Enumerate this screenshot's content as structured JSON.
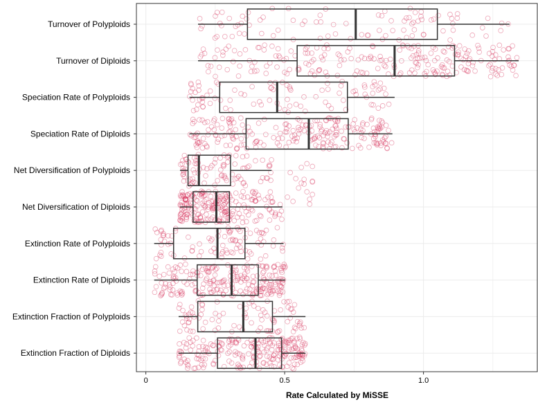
{
  "chart_data": {
    "type": "box",
    "orientation": "horizontal",
    "title": "",
    "xlabel": "Rate Calculated by MiSSE",
    "ylabel": "",
    "xlim": [
      -0.034,
      1.41
    ],
    "xticks": [
      0,
      0.5,
      1.0
    ],
    "xtick_labels": [
      "0",
      "0.5",
      "1.0"
    ],
    "grid": true,
    "point_color": "#d6365e",
    "box_color": "#333333",
    "categories": [
      "Turnover of Polyploids",
      "Turnover of Diploids",
      "Speciation Rate of Polyploids",
      "Speciation Rate of Diploids",
      "Net Diversification of Polyploids",
      "Net Diversification of Diploids",
      "Extinction Rate of Polyploids",
      "Extinction Rate of Diploids",
      "Extinction Fraction of Polyploids",
      "Extinction Fraction of Diploids"
    ],
    "boxes": [
      {
        "whisker_low": 0.188,
        "q1": 0.366,
        "median": 0.756,
        "q3": 1.05,
        "whisker_high": 1.31,
        "n": 90
      },
      {
        "whisker_low": 0.188,
        "q1": 0.545,
        "median": 0.896,
        "q3": 1.112,
        "whisker_high": 1.343,
        "n": 230
      },
      {
        "whisker_low": 0.157,
        "q1": 0.266,
        "median": 0.473,
        "q3": 0.726,
        "whisker_high": 0.896,
        "n": 90
      },
      {
        "whisker_low": 0.157,
        "q1": 0.361,
        "median": 0.587,
        "q3": 0.729,
        "whisker_high": 0.888,
        "n": 230
      },
      {
        "whisker_low": 0.123,
        "q1": 0.152,
        "median": 0.191,
        "q3": 0.305,
        "whisker_high": 0.453,
        "n": 90,
        "outliers": [
          0.52,
          0.56,
          0.58,
          0.6,
          0.6
        ]
      },
      {
        "whisker_low": 0.123,
        "q1": 0.17,
        "median": 0.254,
        "q3": 0.301,
        "whisker_high": 0.492,
        "n": 230,
        "outliers": [
          0.51,
          0.54,
          0.56,
          0.57,
          0.58,
          0.59,
          0.59,
          0.6,
          0.53,
          0.55,
          0.6,
          0.57
        ]
      },
      {
        "whisker_low": 0.03,
        "q1": 0.1,
        "median": 0.258,
        "q3": 0.357,
        "whisker_high": 0.496,
        "n": 90
      },
      {
        "whisker_low": 0.03,
        "q1": 0.185,
        "median": 0.309,
        "q3": 0.405,
        "whisker_high": 0.502,
        "n": 230
      },
      {
        "whisker_low": 0.118,
        "q1": 0.187,
        "median": 0.351,
        "q3": 0.456,
        "whisker_high": 0.575,
        "n": 90
      },
      {
        "whisker_low": 0.118,
        "q1": 0.258,
        "median": 0.395,
        "q3": 0.489,
        "whisker_high": 0.575,
        "n": 230
      }
    ]
  }
}
